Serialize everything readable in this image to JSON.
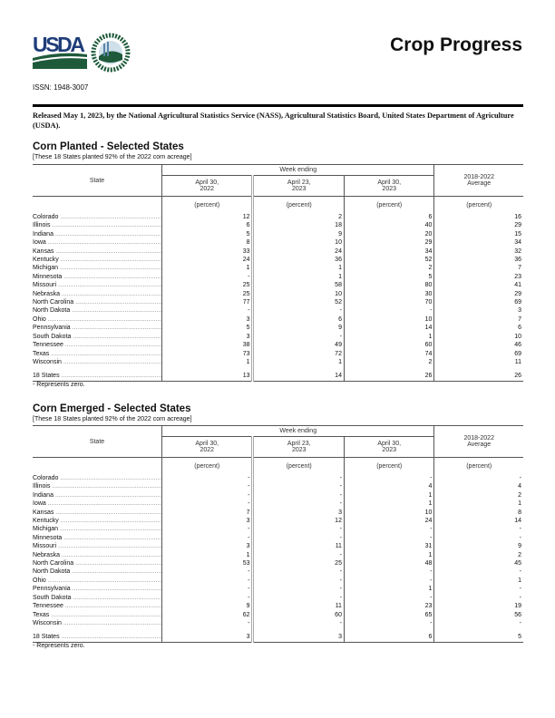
{
  "header": {
    "title": "Crop Progress",
    "issn": "ISSN: 1948-3007",
    "logo_text": "USDA",
    "seal_text": "AGRICULTURE COUNTS"
  },
  "release": "Released May 1, 2023, by the National Agricultural Statistics Service (NASS), Agricultural Statistics Board, United States Department of Agriculture (USDA).",
  "colors": {
    "usda_blue": "#1f3d7a",
    "usda_green": "#1e5a3a"
  },
  "tables": [
    {
      "title": "Corn Planted - Selected States",
      "subtitle": "[These 18 States planted 92% of the 2022 corn acreage]",
      "col_state": "State",
      "col_group": "Week ending",
      "cols": [
        "April 30,\n2022",
        "April 23,\n2023",
        "April 30,\n2023"
      ],
      "col_avg": "2018-2022\nAverage",
      "unit": "(percent)",
      "rows": [
        [
          "Colorado",
          "12",
          "2",
          "6",
          "16"
        ],
        [
          "Illinois",
          "6",
          "18",
          "40",
          "29"
        ],
        [
          "Indiana",
          "5",
          "9",
          "20",
          "15"
        ],
        [
          "Iowa",
          "8",
          "10",
          "29",
          "34"
        ],
        [
          "Kansas",
          "33",
          "24",
          "34",
          "32"
        ],
        [
          "Kentucky",
          "24",
          "36",
          "52",
          "36"
        ],
        [
          "Michigan",
          "1",
          "1",
          "2",
          "7"
        ],
        [
          "Minnesota",
          "-",
          "1",
          "5",
          "23"
        ],
        [
          "Missouri",
          "25",
          "58",
          "80",
          "41"
        ],
        [
          "Nebraska",
          "25",
          "10",
          "30",
          "29"
        ],
        [
          "North Carolina",
          "77",
          "52",
          "70",
          "69"
        ],
        [
          "North Dakota",
          "-",
          "-",
          "-",
          "3"
        ],
        [
          "Ohio",
          "3",
          "6",
          "10",
          "7"
        ],
        [
          "Pennsylvania",
          "5",
          "9",
          "14",
          "6"
        ],
        [
          "South Dakota",
          "3",
          "-",
          "1",
          "10"
        ],
        [
          "Tennessee",
          "38",
          "49",
          "60",
          "46"
        ],
        [
          "Texas",
          "73",
          "72",
          "74",
          "69"
        ],
        [
          "Wisconsin",
          "1",
          "1",
          "2",
          "11"
        ]
      ],
      "total": [
        "18 States",
        "13",
        "14",
        "26",
        "26"
      ],
      "footnote": "- Represents zero."
    },
    {
      "title": "Corn Emerged - Selected States",
      "subtitle": "[These 18 States planted 92% of the 2022 corn acreage]",
      "col_state": "State",
      "col_group": "Week ending",
      "cols": [
        "April 30,\n2022",
        "April 23,\n2023",
        "April 30,\n2023"
      ],
      "col_avg": "2018-2022\nAverage",
      "unit": "(percent)",
      "rows": [
        [
          "Colorado",
          "-",
          "-",
          "-",
          "-"
        ],
        [
          "Illinois",
          "-",
          "-",
          "4",
          "4"
        ],
        [
          "Indiana",
          "-",
          "-",
          "1",
          "2"
        ],
        [
          "Iowa",
          "-",
          "-",
          "1",
          "1"
        ],
        [
          "Kansas",
          "7",
          "3",
          "10",
          "8"
        ],
        [
          "Kentucky",
          "3",
          "12",
          "24",
          "14"
        ],
        [
          "Michigan",
          "-",
          "-",
          "-",
          "-"
        ],
        [
          "Minnesota",
          "-",
          "-",
          "-",
          "-"
        ],
        [
          "Missouri",
          "3",
          "11",
          "31",
          "9"
        ],
        [
          "Nebraska",
          "1",
          "-",
          "1",
          "2"
        ],
        [
          "North Carolina",
          "53",
          "25",
          "48",
          "45"
        ],
        [
          "North Dakota",
          "-",
          "-",
          "-",
          "-"
        ],
        [
          "Ohio",
          "-",
          "-",
          "-",
          "1"
        ],
        [
          "Pennsylvania",
          "-",
          "-",
          "1",
          "-"
        ],
        [
          "South Dakota",
          "-",
          "-",
          "-",
          "-"
        ],
        [
          "Tennessee",
          "9",
          "11",
          "23",
          "19"
        ],
        [
          "Texas",
          "62",
          "60",
          "65",
          "56"
        ],
        [
          "Wisconsin",
          "-",
          "-",
          "-",
          "-"
        ]
      ],
      "total": [
        "18 States",
        "3",
        "3",
        "6",
        "5"
      ],
      "footnote": "- Represents zero."
    }
  ]
}
